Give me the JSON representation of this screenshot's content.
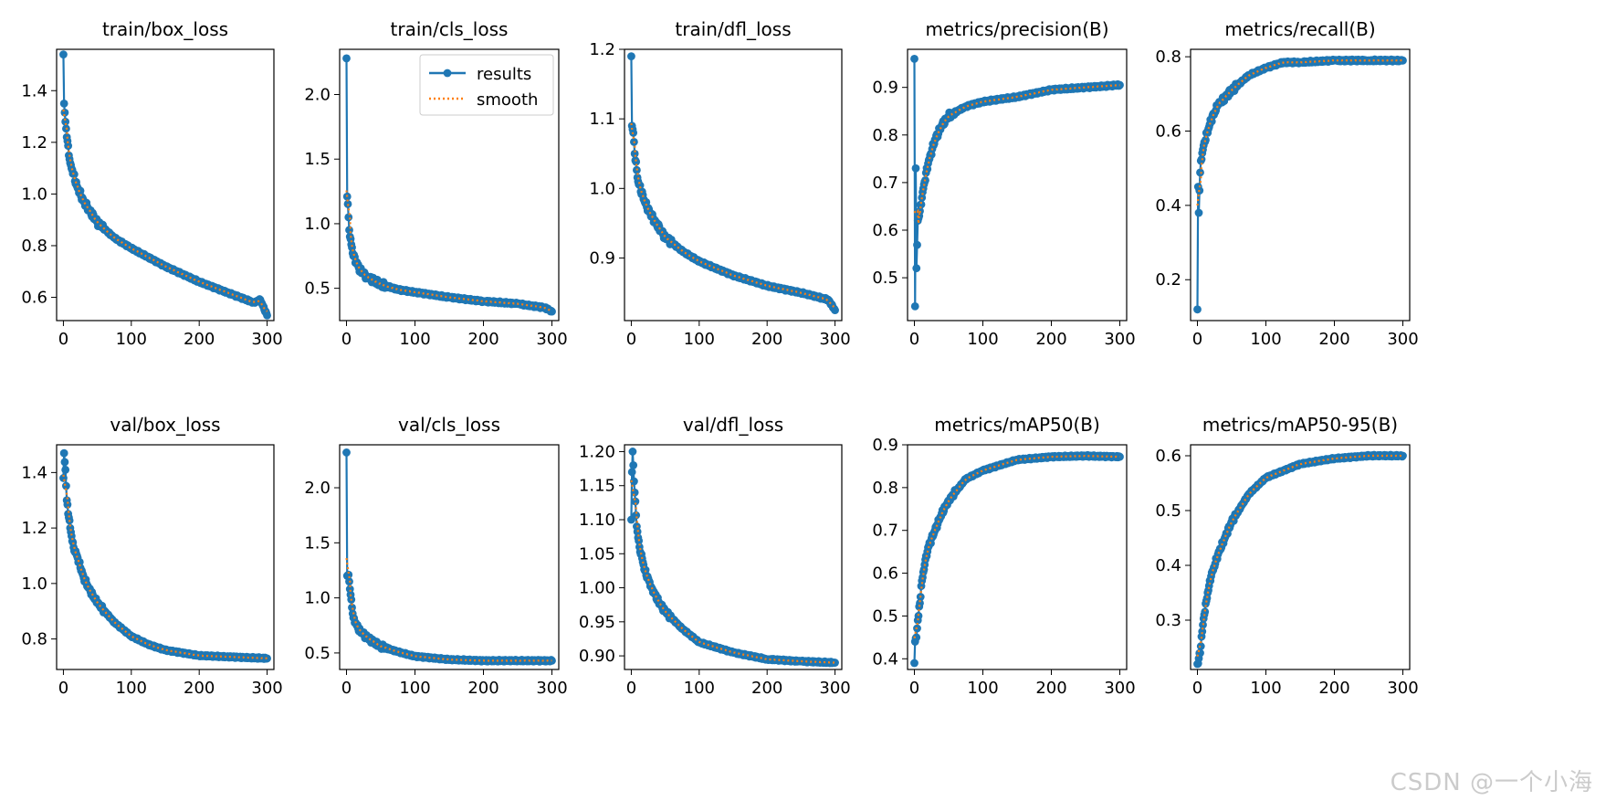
{
  "watermark": "CSDN @一个小海",
  "colors": {
    "results": "#1f77b4",
    "smooth": "#ff7f0e"
  },
  "legend": {
    "results_label": "results",
    "smooth_label": "smooth",
    "panel": 1,
    "placement": "upper-right"
  },
  "chart_data": [
    {
      "type": "line",
      "title": "train/box_loss",
      "xlim": [
        -10,
        310
      ],
      "ylim": [
        0.51,
        1.56
      ],
      "xticks": [
        0,
        100,
        200,
        300
      ],
      "yticks": [
        0.6,
        0.8,
        1.0,
        1.2,
        1.4
      ],
      "curve": "decay",
      "start": 1.54,
      "p2": 1.35,
      "end": 0.53,
      "shape": "loss",
      "points": [
        [
          0,
          1.54
        ],
        [
          1,
          1.35
        ],
        [
          5,
          1.22
        ],
        [
          10,
          1.12
        ],
        [
          20,
          1.03
        ],
        [
          30,
          0.97
        ],
        [
          50,
          0.89
        ],
        [
          75,
          0.83
        ],
        [
          100,
          0.79
        ],
        [
          150,
          0.72
        ],
        [
          200,
          0.66
        ],
        [
          250,
          0.61
        ],
        [
          280,
          0.58
        ],
        [
          290,
          0.59
        ],
        [
          300,
          0.53
        ]
      ]
    },
    {
      "type": "line",
      "title": "train/cls_loss",
      "xlim": [
        -10,
        310
      ],
      "ylim": [
        0.25,
        2.35
      ],
      "xticks": [
        0,
        100,
        200,
        300
      ],
      "yticks": [
        0.5,
        1.0,
        1.5,
        2.0
      ],
      "points": [
        [
          0,
          2.28
        ],
        [
          1,
          1.21
        ],
        [
          3,
          1.05
        ],
        [
          5,
          0.9
        ],
        [
          10,
          0.75
        ],
        [
          20,
          0.64
        ],
        [
          30,
          0.59
        ],
        [
          50,
          0.53
        ],
        [
          75,
          0.49
        ],
        [
          100,
          0.47
        ],
        [
          150,
          0.43
        ],
        [
          200,
          0.4
        ],
        [
          250,
          0.38
        ],
        [
          290,
          0.35
        ],
        [
          300,
          0.32
        ]
      ]
    },
    {
      "type": "line",
      "title": "train/dfl_loss",
      "xlim": [
        -10,
        310
      ],
      "ylim": [
        0.81,
        1.2
      ],
      "xticks": [
        0,
        100,
        200,
        300
      ],
      "yticks": [
        0.9,
        1.0,
        1.1,
        1.2
      ],
      "points": [
        [
          0,
          1.19
        ],
        [
          1,
          1.09
        ],
        [
          3,
          1.08
        ],
        [
          5,
          1.05
        ],
        [
          10,
          1.01
        ],
        [
          20,
          0.98
        ],
        [
          30,
          0.96
        ],
        [
          50,
          0.93
        ],
        [
          75,
          0.91
        ],
        [
          100,
          0.895
        ],
        [
          150,
          0.875
        ],
        [
          200,
          0.86
        ],
        [
          250,
          0.85
        ],
        [
          290,
          0.84
        ],
        [
          300,
          0.825
        ]
      ]
    },
    {
      "type": "line",
      "title": "metrics/precision(B)",
      "xlim": [
        -10,
        310
      ],
      "ylim": [
        0.41,
        0.98
      ],
      "xticks": [
        0,
        100,
        200,
        300
      ],
      "yticks": [
        0.5,
        0.6,
        0.7,
        0.8,
        0.9
      ],
      "points": [
        [
          0,
          0.96
        ],
        [
          1,
          0.44
        ],
        [
          2,
          0.73
        ],
        [
          3,
          0.52
        ],
        [
          5,
          0.62
        ],
        [
          8,
          0.64
        ],
        [
          12,
          0.68
        ],
        [
          20,
          0.74
        ],
        [
          30,
          0.79
        ],
        [
          40,
          0.82
        ],
        [
          50,
          0.84
        ],
        [
          75,
          0.86
        ],
        [
          100,
          0.87
        ],
        [
          150,
          0.88
        ],
        [
          200,
          0.895
        ],
        [
          250,
          0.9
        ],
        [
          300,
          0.905
        ]
      ]
    },
    {
      "type": "line",
      "title": "metrics/recall(B)",
      "xlim": [
        -10,
        310
      ],
      "ylim": [
        0.09,
        0.82
      ],
      "xticks": [
        0,
        100,
        200,
        300
      ],
      "yticks": [
        0.2,
        0.4,
        0.6,
        0.8
      ],
      "points": [
        [
          0,
          0.12
        ],
        [
          1,
          0.45
        ],
        [
          2,
          0.38
        ],
        [
          3,
          0.44
        ],
        [
          5,
          0.52
        ],
        [
          10,
          0.57
        ],
        [
          20,
          0.63
        ],
        [
          30,
          0.67
        ],
        [
          50,
          0.71
        ],
        [
          75,
          0.75
        ],
        [
          100,
          0.77
        ],
        [
          125,
          0.785
        ],
        [
          150,
          0.785
        ],
        [
          200,
          0.79
        ],
        [
          250,
          0.79
        ],
        [
          300,
          0.79
        ]
      ]
    },
    {
      "type": "line",
      "title": "val/box_loss",
      "xlim": [
        -10,
        310
      ],
      "ylim": [
        0.69,
        1.5
      ],
      "xticks": [
        0,
        100,
        200,
        300
      ],
      "yticks": [
        0.8,
        1.0,
        1.2,
        1.4
      ],
      "points": [
        [
          0,
          1.38
        ],
        [
          1,
          1.47
        ],
        [
          3,
          1.41
        ],
        [
          5,
          1.3
        ],
        [
          10,
          1.2
        ],
        [
          15,
          1.13
        ],
        [
          20,
          1.1
        ],
        [
          30,
          1.02
        ],
        [
          40,
          0.97
        ],
        [
          50,
          0.93
        ],
        [
          75,
          0.86
        ],
        [
          100,
          0.81
        ],
        [
          125,
          0.78
        ],
        [
          150,
          0.76
        ],
        [
          200,
          0.74
        ],
        [
          250,
          0.735
        ],
        [
          300,
          0.73
        ]
      ]
    },
    {
      "type": "line",
      "title": "val/cls_loss",
      "xlim": [
        -10,
        310
      ],
      "ylim": [
        0.35,
        2.39
      ],
      "xticks": [
        0,
        100,
        200,
        300
      ],
      "yticks": [
        0.5,
        1.0,
        1.5,
        2.0
      ],
      "points": [
        [
          0,
          2.32
        ],
        [
          1,
          1.2
        ],
        [
          3,
          1.21
        ],
        [
          5,
          1.08
        ],
        [
          10,
          0.82
        ],
        [
          15,
          0.75
        ],
        [
          20,
          0.7
        ],
        [
          30,
          0.64
        ],
        [
          50,
          0.56
        ],
        [
          75,
          0.51
        ],
        [
          100,
          0.47
        ],
        [
          150,
          0.44
        ],
        [
          200,
          0.43
        ],
        [
          250,
          0.43
        ],
        [
          300,
          0.43
        ]
      ]
    },
    {
      "type": "line",
      "title": "val/dfl_loss",
      "xlim": [
        -10,
        310
      ],
      "ylim": [
        0.88,
        1.21
      ],
      "xticks": [
        0,
        100,
        200,
        300
      ],
      "yticks": [
        0.9,
        0.95,
        1.0,
        1.05,
        1.1,
        1.15,
        1.2
      ],
      "ytickfmt": 2,
      "points": [
        [
          0,
          1.1
        ],
        [
          1,
          1.17
        ],
        [
          2,
          1.2
        ],
        [
          3,
          1.18
        ],
        [
          5,
          1.14
        ],
        [
          8,
          1.09
        ],
        [
          12,
          1.06
        ],
        [
          20,
          1.025
        ],
        [
          30,
          1.0
        ],
        [
          40,
          0.98
        ],
        [
          50,
          0.965
        ],
        [
          75,
          0.94
        ],
        [
          100,
          0.92
        ],
        [
          150,
          0.905
        ],
        [
          200,
          0.895
        ],
        [
          250,
          0.892
        ],
        [
          300,
          0.89
        ]
      ]
    },
    {
      "type": "line",
      "title": "metrics/mAP50(B)",
      "xlim": [
        -10,
        310
      ],
      "ylim": [
        0.375,
        0.9
      ],
      "xticks": [
        0,
        100,
        200,
        300
      ],
      "yticks": [
        0.4,
        0.5,
        0.6,
        0.7,
        0.8,
        0.9
      ],
      "points": [
        [
          0,
          0.39
        ],
        [
          1,
          0.44
        ],
        [
          3,
          0.45
        ],
        [
          5,
          0.49
        ],
        [
          8,
          0.53
        ],
        [
          10,
          0.57
        ],
        [
          15,
          0.62
        ],
        [
          20,
          0.66
        ],
        [
          30,
          0.7
        ],
        [
          40,
          0.74
        ],
        [
          50,
          0.77
        ],
        [
          75,
          0.82
        ],
        [
          100,
          0.84
        ],
        [
          150,
          0.865
        ],
        [
          200,
          0.872
        ],
        [
          250,
          0.874
        ],
        [
          300,
          0.872
        ]
      ]
    },
    {
      "type": "line",
      "title": "metrics/mAP50-95(B)",
      "xlim": [
        -10,
        310
      ],
      "ylim": [
        0.21,
        0.62
      ],
      "xticks": [
        0,
        100,
        200,
        300
      ],
      "yticks": [
        0.3,
        0.4,
        0.5,
        0.6
      ],
      "points": [
        [
          0,
          0.22
        ],
        [
          2,
          0.23
        ],
        [
          4,
          0.24
        ],
        [
          6,
          0.27
        ],
        [
          10,
          0.31
        ],
        [
          15,
          0.35
        ],
        [
          20,
          0.38
        ],
        [
          30,
          0.42
        ],
        [
          40,
          0.45
        ],
        [
          50,
          0.48
        ],
        [
          75,
          0.53
        ],
        [
          100,
          0.56
        ],
        [
          150,
          0.585
        ],
        [
          200,
          0.595
        ],
        [
          250,
          0.6
        ],
        [
          300,
          0.6
        ]
      ]
    }
  ]
}
